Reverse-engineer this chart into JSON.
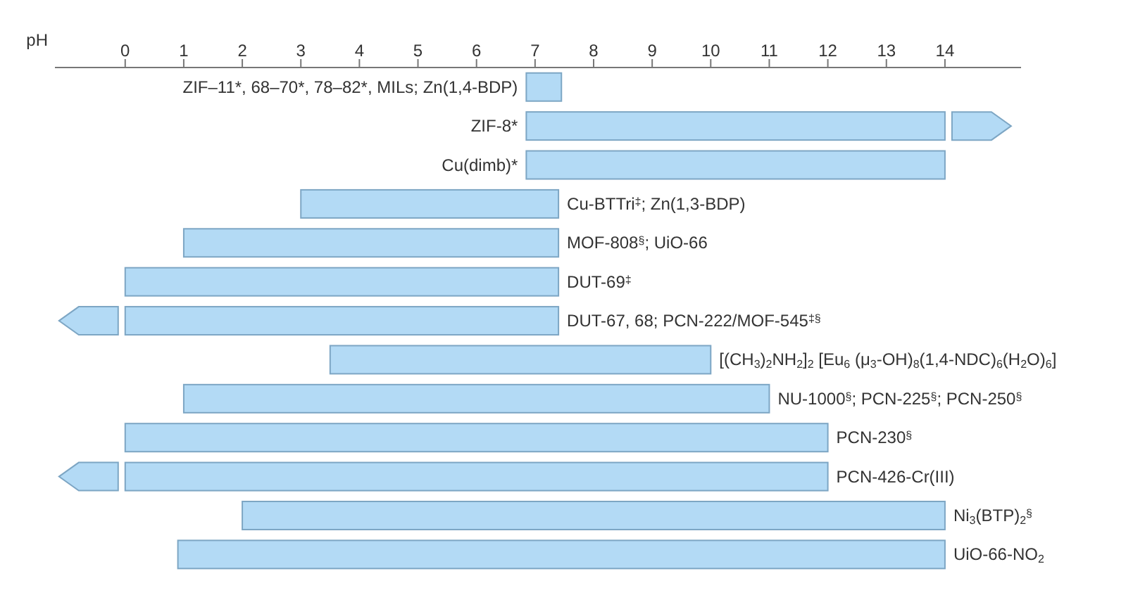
{
  "chart_data": {
    "type": "bar",
    "orientation": "horizontal",
    "stacked": true,
    "xlabel": "pH",
    "categories": [
      "ZIF–11*, 68–70*, 78–82*, MILs; Zn(1,4-BDP)",
      "ZIF-8*",
      "Cu(dimb)*",
      "Cu-BTTri$^{‡}$; Zn(1,3-BDP)",
      "MOF-808$^{§}$; UiO-66",
      "DUT-69$^{‡}$",
      "DUT-67, 68; PCN-222/MOF-545$^{‡§}$",
      "[(CH$_{3}$)$_{2}$NH$_{2}$]$_{2}$ [Eu$_{6}$ (μ$_{3}$-OH)$_{8}$(1,4-NDC)$_{6}$(H$_{2}$O)$_{6}$]",
      "NU-1000$^{§}$; PCN-225$^{§}$; PCN-250$^{§}$",
      "PCN-230$^{§}$",
      "PCN-426-Cr(III)",
      "Ni$_{3}$(BTP)$_{2}$$^{§}$",
      "UiO-66-NO$_{2}$"
    ],
    "base": [
      6.85,
      6.85,
      6.85,
      3,
      1,
      0,
      0,
      3.5,
      1,
      0,
      0,
      2,
      0.9
    ],
    "values": [
      0.6,
      7.15,
      7.15,
      4.4,
      6.4,
      7.4,
      7.4,
      6.5,
      10,
      12,
      12,
      12,
      13.1
    ],
    "color": "#b3daf5",
    "xlim": [
      -1.2,
      15.3
    ],
    "xticks": [
      0,
      1,
      2,
      3,
      4,
      5,
      6,
      7,
      8,
      9,
      10,
      11,
      12,
      13,
      14
    ],
    "tick_labels": "x"
  }
}
